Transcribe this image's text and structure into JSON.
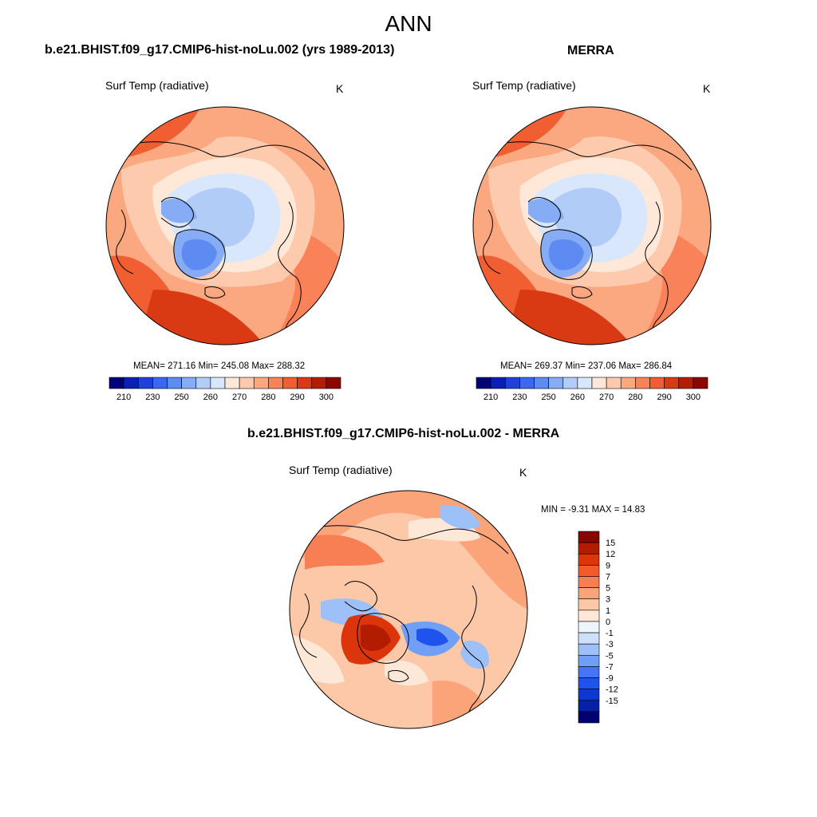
{
  "title": "ANN",
  "colors": {
    "hcl_210_300": [
      "#01017a",
      "#0a1fb4",
      "#1e41db",
      "#3a68ee",
      "#5e8bf2",
      "#86acf5",
      "#b2ccf8",
      "#d8e7fb",
      "#ffe8d8",
      "#fdcaae",
      "#fba780",
      "#f98258",
      "#f05e31",
      "#d93a14",
      "#b41c04",
      "#8b0700"
    ],
    "diff": [
      "#010174",
      "#0620a8",
      "#0d38d0",
      "#2052ee",
      "#4575f2",
      "#709ff6",
      "#9dc0f9",
      "#cde0fb",
      "#eef5fd",
      "#fde8d8",
      "#fcc8a8",
      "#fba47a",
      "#f87f53",
      "#f35a2c",
      "#dc350b",
      "#b21d01",
      "#860601"
    ],
    "land_outline": "#000000"
  },
  "panels": [
    {
      "id": "model",
      "case_title": "b.e21.BHIST.f09_g17.CMIP6-hist-noLu.002 (yrs 1989-2013)",
      "variable": "Surf Temp (radiative)",
      "units": "K",
      "stats": "MEAN= 271.16  Min= 245.08  Max= 288.32",
      "colorbar_ticks": [
        "210",
        "230",
        "250",
        "260",
        "270",
        "280",
        "290",
        "300"
      ]
    },
    {
      "id": "obs",
      "case_title": "MERRA",
      "variable": "Surf Temp (radiative)",
      "units": "K",
      "stats": "MEAN= 269.37  Min= 237.06  Max= 286.84",
      "colorbar_ticks": [
        "210",
        "230",
        "250",
        "260",
        "270",
        "280",
        "290",
        "300"
      ]
    },
    {
      "id": "diff",
      "case_title": "b.e21.BHIST.f09_g17.CMIP6-hist-noLu.002 - MERRA",
      "variable": "Surf Temp (radiative)",
      "units": "K",
      "stats": "MIN =  -9.31 MAX =  14.83",
      "colorbar_ticks": [
        "15",
        "12",
        "9",
        "7",
        "5",
        "3",
        "1",
        "0",
        "-1",
        "-3",
        "-5",
        "-7",
        "-9",
        "-12",
        "-15"
      ]
    }
  ]
}
